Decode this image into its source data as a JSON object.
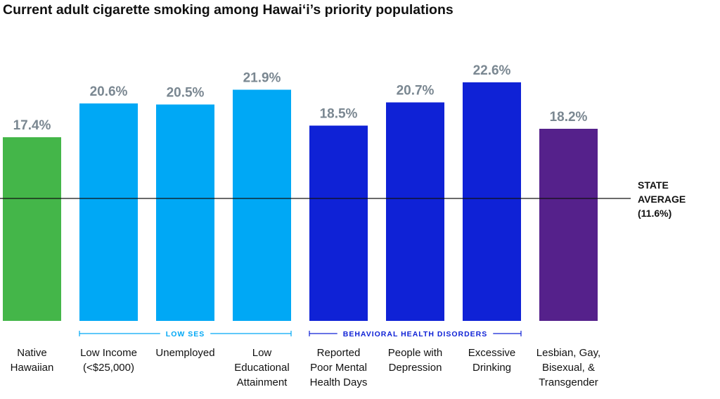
{
  "chart_data": {
    "type": "bar",
    "title": "Current adult cigarette smoking among Hawai‘i’s priority populations",
    "categories": [
      [
        "Native",
        "Hawaiian"
      ],
      [
        "Low Income",
        "(<$25,000)"
      ],
      [
        "Unemployed"
      ],
      [
        "Low",
        "Educational",
        "Attainment"
      ],
      [
        "Reported",
        "Poor Mental",
        "Health Days"
      ],
      [
        "People with",
        "Depression"
      ],
      [
        "Excessive",
        "Drinking"
      ],
      [
        "Lesbian, Gay,",
        "Bisexual, &",
        "Transgender"
      ]
    ],
    "values": [
      17.4,
      20.6,
      20.5,
      21.9,
      18.5,
      20.7,
      22.6,
      18.2
    ],
    "value_labels": [
      "17.4%",
      "20.6%",
      "20.5%",
      "21.9%",
      "18.5%",
      "20.7%",
      "22.6%",
      "18.2%"
    ],
    "colors": [
      "#44B649",
      "#00A8F5",
      "#00A8F5",
      "#00A8F5",
      "#0F22D6",
      "#0F22D6",
      "#0F22D6",
      "#55218B"
    ],
    "value_label_color": "#7A8791",
    "ylim": [
      0,
      26
    ],
    "grid": false,
    "reference_line": {
      "value": 11.6,
      "label": [
        "STATE",
        "AVERAGE",
        "(11.6%)"
      ]
    },
    "groups": [
      {
        "label": "LOW SES",
        "start": 1,
        "end": 3,
        "color": "#00A8F5"
      },
      {
        "label": "BEHAVIORAL HEALTH DISORDERS",
        "start": 4,
        "end": 6,
        "color": "#0F22D6"
      }
    ]
  }
}
